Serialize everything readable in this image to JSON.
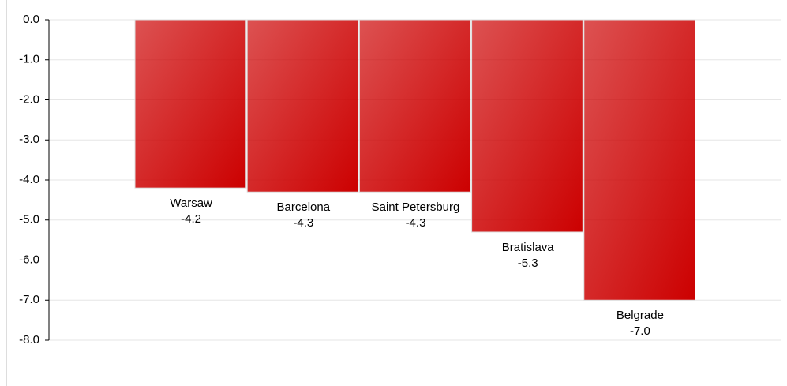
{
  "chart_data": {
    "type": "bar",
    "categories": [
      "Warsaw",
      "Barcelona",
      "Saint Petersburg",
      "Bratislava",
      "Belgrade"
    ],
    "values": [
      -4.2,
      -4.3,
      -4.3,
      -5.3,
      -7.0
    ],
    "value_labels": [
      "-4.2",
      "-4.3",
      "-4.3",
      "-5.3",
      "-7.0"
    ],
    "color": "#cc0000",
    "ylim": [
      -8,
      0
    ],
    "yticks": [
      {
        "value": 0,
        "label": "0.0"
      },
      {
        "value": -1,
        "label": "-1.0"
      },
      {
        "value": -2,
        "label": "-2.0"
      },
      {
        "value": -3,
        "label": "-3.0"
      },
      {
        "value": -4,
        "label": "-4.0"
      },
      {
        "value": -5,
        "label": "-5.0"
      },
      {
        "value": -6,
        "label": "-6.0"
      },
      {
        "value": -7,
        "label": "-7.0"
      },
      {
        "value": -8,
        "label": "-8.0"
      }
    ],
    "grid": true
  }
}
